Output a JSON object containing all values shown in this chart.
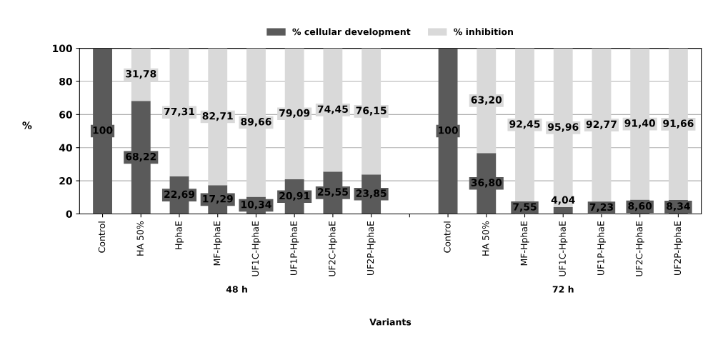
{
  "chart_data": {
    "type": "bar",
    "stacked": true,
    "xlabel": "Variants",
    "ylabel": "%",
    "categories": [
      "Control",
      "HA 50%",
      "HphaE",
      "MF-HphaE",
      "UF1C-HphaE",
      "UF1P-HphaE",
      "UF2C-HphaE",
      "UF2P-HphaE",
      null,
      "Control",
      "HA 50%",
      "MF-HphaE",
      "UF1C-HphaE",
      "UF1P-HphaE",
      "UF2C-HphaE",
      "UF2P-HphaE"
    ],
    "series": [
      {
        "name": "% cellular development",
        "color": "#5a5a5a",
        "values": [
          100,
          68.22,
          22.69,
          17.29,
          10.34,
          20.91,
          25.55,
          23.85,
          null,
          100,
          36.8,
          7.55,
          4.04,
          7.23,
          8.6,
          8.34
        ],
        "value_labels": [
          "100",
          "68,22",
          "22,69",
          "17,29",
          "10,34",
          "20,91",
          "25,55",
          "23,85",
          null,
          "100",
          "36,80",
          "7,55",
          "4,04",
          "7,23",
          "8,60",
          "8,34"
        ]
      },
      {
        "name": "% inhibition",
        "color": "#d9d9d9",
        "values": [
          0,
          31.78,
          77.31,
          82.71,
          89.66,
          79.09,
          74.45,
          76.15,
          null,
          0,
          63.2,
          92.45,
          95.96,
          92.77,
          91.4,
          91.66
        ],
        "value_labels": [
          null,
          "31,78",
          "77,31",
          "82,71",
          "89,66",
          "79,09",
          "74,45",
          "76,15",
          null,
          null,
          "63,20",
          "92,45",
          "95,96",
          "92,77",
          "91,40",
          "91,66"
        ]
      }
    ],
    "annotations": [
      "48 h",
      "72 h"
    ],
    "ylim": [
      0,
      100
    ],
    "yticks": [
      0,
      20,
      40,
      60,
      80,
      100
    ],
    "grid": "y",
    "legend": "top"
  }
}
